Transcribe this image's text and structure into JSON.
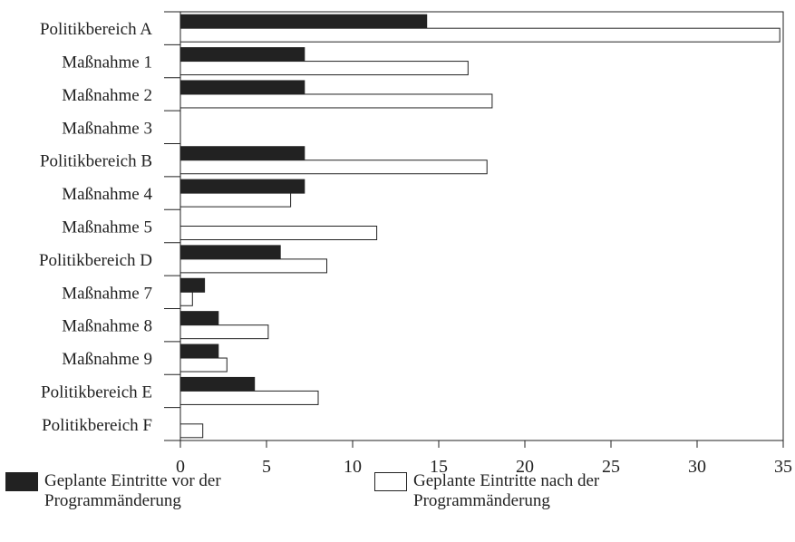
{
  "chart_data": {
    "type": "bar",
    "orientation": "horizontal",
    "categories": [
      "Politikbereich A",
      "Maßnahme 1",
      "Maßnahme 2",
      "Maßnahme 3",
      "Politikbereich B",
      "Maßnahme 4",
      "Maßnahme 5",
      "Politikbereich D",
      "Maßnahme 7",
      "Maßnahme 8",
      "Maßnahme 9",
      "Politikbereich E",
      "Politikbereich F"
    ],
    "series": [
      {
        "name": "Geplante Eintritte vor der Programmänderung",
        "color": "#222222",
        "values": [
          14.3,
          7.2,
          7.2,
          0,
          7.2,
          7.2,
          0,
          5.8,
          1.4,
          2.2,
          2.2,
          4.3,
          0
        ]
      },
      {
        "name": "Geplante Eintritte nach der Programmänderung",
        "color": "#ffffff",
        "values": [
          34.8,
          16.7,
          18.1,
          0,
          17.8,
          6.4,
          11.4,
          8.5,
          0.7,
          5.1,
          2.7,
          8.0,
          1.3
        ]
      }
    ],
    "xlim": [
      0,
      35
    ],
    "xticks": [
      0,
      5,
      10,
      15,
      20,
      25,
      30,
      35
    ],
    "title": "",
    "xlabel": "",
    "ylabel": "",
    "grid": false,
    "legend_position": "bottom"
  },
  "legend": {
    "before_line1": "Geplante Eintritte vor der",
    "before_line2": "Programmänderung",
    "after_line1": "Geplante Eintritte nach der",
    "after_line2": "Programmänderung"
  }
}
